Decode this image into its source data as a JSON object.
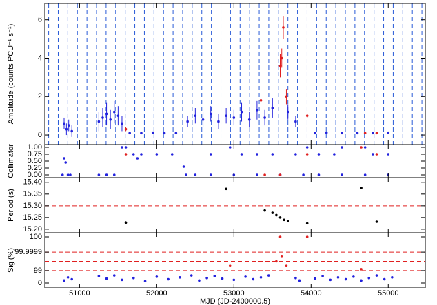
{
  "chart_data": [
    {
      "type": "scatter",
      "ylabel": "Amplitude (counts PCU⁻¹ s⁻¹)",
      "xlim": [
        50550,
        55480
      ],
      "ylim": [
        -0.5,
        6.85
      ],
      "yticks": [
        0,
        2,
        4,
        6
      ],
      "vlines": {
        "color": "#2a5bd7",
        "x": [
          50600,
          50724,
          50848,
          50972,
          51096,
          51220,
          51344,
          51468,
          51592,
          51716,
          51840,
          51964,
          52088,
          52212,
          52336,
          52460,
          52584,
          52708,
          52832,
          52956,
          53080,
          53204,
          53328,
          53452,
          53576,
          53700,
          53824,
          53948,
          54072,
          54196,
          54320,
          54444,
          54568,
          54692,
          54816,
          54940,
          55064,
          55188,
          55312,
          55436
        ]
      },
      "series": [
        {
          "color": "#2222dd",
          "x": [
            50800,
            50830,
            50860,
            50900,
            51250,
            51300,
            51350,
            51400,
            51450,
            51500,
            51550,
            51650,
            51800,
            51950,
            52100,
            52250,
            52400,
            52500,
            52600,
            52700,
            52800,
            52900,
            53000,
            53100,
            53200,
            53300,
            53400,
            53500,
            53700,
            53800,
            54050,
            54200,
            54400,
            54600,
            54800,
            55000
          ],
          "values": [
            0.6,
            0.3,
            0.5,
            0.2,
            0.7,
            0.9,
            1.1,
            0.8,
            1.2,
            1.0,
            0.6,
            0.1,
            0.1,
            0.12,
            0.1,
            0.1,
            0.7,
            1.0,
            0.8,
            1.1,
            0.7,
            1.0,
            0.9,
            1.2,
            0.8,
            1.3,
            0.9,
            1.4,
            1.2,
            0.7,
            0.1,
            0.12,
            0.1,
            0.1,
            0.1,
            0.12
          ],
          "errors": [
            0.3,
            0.3,
            0.3,
            0.3,
            0.5,
            0.5,
            0.6,
            0.5,
            0.6,
            0.5,
            0.4,
            0.05,
            0.05,
            0.05,
            0.05,
            0.05,
            0.3,
            0.4,
            0.4,
            0.4,
            0.4,
            0.4,
            0.4,
            0.5,
            0.4,
            0.5,
            0.4,
            0.5,
            0.4,
            0.3,
            0.05,
            0.05,
            0.05,
            0.05,
            0.05,
            0.05
          ]
        },
        {
          "color": "#e02020",
          "x": [
            51600,
            53350,
            53600,
            53620,
            53640,
            53680,
            53950,
            54700,
            54850
          ],
          "values": [
            0.3,
            1.8,
            3.6,
            4.0,
            5.6,
            2.0,
            1.0,
            0.1,
            0.1
          ],
          "errors": [
            0.1,
            0.3,
            0.6,
            0.5,
            0.6,
            0.4,
            0.1,
            0.05,
            0.05
          ]
        }
      ]
    },
    {
      "type": "scatter",
      "ylabel": "Collimator",
      "xlim": [
        50550,
        55480
      ],
      "ylim": [
        -0.1,
        1.1
      ],
      "yticks": [
        {
          "value": 0,
          "label": "0.00"
        },
        0.25,
        {
          "value": 0.5,
          "label": "0.50"
        },
        0.75,
        {
          "value": 1,
          "label": "1.00"
        }
      ],
      "series": [
        {
          "color": "#2222dd",
          "x": [
            50780,
            50800,
            50820,
            50850,
            50880,
            51250,
            51350,
            51450,
            51550,
            51600,
            51700,
            51750,
            51800,
            52000,
            52200,
            52350,
            52380,
            52500,
            52700,
            53000,
            53300,
            52700,
            52950,
            53100,
            53300,
            53500,
            53800,
            53950,
            54100,
            54300,
            54400,
            54700,
            54800,
            55000,
            54100,
            54400,
            54700,
            55000,
            53600,
            53900
          ],
          "values": [
            0,
            0.6,
            0.45,
            0,
            0,
            0,
            0,
            0,
            1.0,
            1.0,
            0.75,
            0.6,
            0.75,
            0.75,
            0.75,
            0.3,
            0,
            0,
            0,
            0,
            0,
            0.75,
            1.0,
            0.75,
            0.75,
            0.75,
            0.75,
            1.0,
            0.75,
            0.75,
            1.0,
            1.0,
            0.75,
            0.75,
            0,
            0,
            0,
            0,
            0,
            0
          ]
        },
        {
          "color": "#e02020",
          "x": [
            51600,
            53400,
            53600,
            53950,
            54650,
            54850
          ],
          "values": [
            0.75,
            0,
            0,
            0.75,
            1.0,
            0.75
          ]
        }
      ]
    },
    {
      "type": "scatter",
      "ylabel": "Period (s)",
      "xlim": [
        50550,
        55480
      ],
      "ylim": [
        15.185,
        15.42
      ],
      "yticks": [
        {
          "value": 15.2,
          "label": "15.20"
        },
        15.25,
        {
          "value": 15.3,
          "label": "15.30"
        },
        15.35,
        {
          "value": 15.4,
          "label": "15.40"
        }
      ],
      "hlines": {
        "color": "#e02020",
        "y": [
          15.3
        ]
      },
      "series": [
        {
          "color": "#000000",
          "x": [
            51600,
            52900,
            53400,
            53500,
            53550,
            53600,
            53650,
            53700,
            53950,
            54650,
            54850
          ],
          "values": [
            15.228,
            15.372,
            15.28,
            15.27,
            15.26,
            15.25,
            15.24,
            15.235,
            15.225,
            15.376,
            15.232
          ],
          "errors": [
            0.006,
            0.003,
            0.004,
            0.004,
            0.004,
            0.004,
            0.004,
            0.004,
            0.002,
            0.002,
            0.002
          ]
        }
      ]
    },
    {
      "type": "scatter",
      "ylabel": "Sig (%)",
      "yscale": "confidence",
      "xlim": [
        50550,
        55480
      ],
      "ylim": [
        0,
        100
      ],
      "yticks": [
        0,
        99,
        99.9999,
        100
      ],
      "xticks": [
        51000,
        52000,
        53000,
        54000,
        55000
      ],
      "xlabel": "MJD (JD-2400000.5)",
      "hlines": {
        "color": "#e02020",
        "y": [
          99,
          99.99,
          99.9999
        ]
      },
      "series": [
        {
          "color": "#2222dd",
          "x": [
            50800,
            50850,
            50900,
            51250,
            51350,
            51450,
            51550,
            51700,
            51850,
            52000,
            52150,
            52300,
            52450,
            52550,
            52650,
            52750,
            52850,
            53000,
            53150,
            53250,
            53350,
            53450,
            53800,
            53850,
            54050,
            54150,
            54250,
            54350,
            54450,
            54550,
            54650,
            54750,
            54850,
            54950,
            55050
          ],
          "values": [
            20,
            45,
            30,
            55,
            35,
            60,
            25,
            40,
            15,
            50,
            30,
            45,
            60,
            20,
            40,
            55,
            35,
            25,
            50,
            30,
            45,
            60,
            40,
            20,
            35,
            55,
            25,
            45,
            30,
            50,
            20,
            40,
            60,
            30,
            45
          ]
        },
        {
          "color": "#e02020",
          "x": [
            52950,
            53550,
            53600,
            53620,
            53680,
            53950,
            54650
          ],
          "values": [
            99.9,
            99.99,
            100,
            99.999,
            99.9,
            100,
            99.5
          ]
        }
      ]
    }
  ]
}
